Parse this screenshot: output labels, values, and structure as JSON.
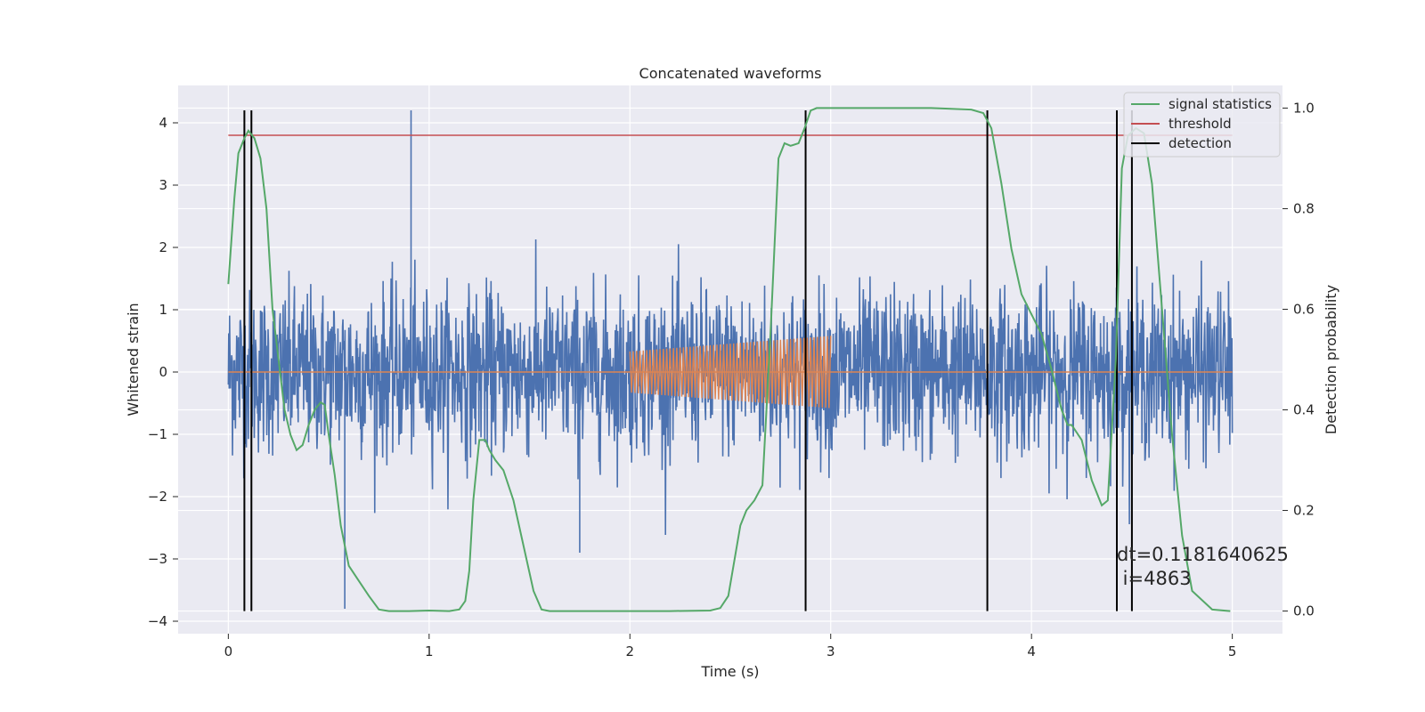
{
  "chart_data": {
    "type": "line",
    "title": "Concatenated waveforms",
    "xlabel": "Time (s)",
    "ylabel_left": "Whitened strain",
    "ylabel_right": "Detection probability",
    "xlim": [
      -0.25,
      5.25
    ],
    "ylim_left": [
      -4.2,
      4.6
    ],
    "ylim_right": [
      -0.045,
      1.045
    ],
    "x_ticks": [
      0,
      1,
      2,
      3,
      4,
      5
    ],
    "y_ticks_left": [
      -4,
      -3,
      -2,
      -1,
      0,
      1,
      2,
      3,
      4
    ],
    "y_ticks_left_labels": [
      "−4",
      "−3",
      "−2",
      "−1",
      "0",
      "1",
      "2",
      "3",
      "4"
    ],
    "y_ticks_right": [
      0.0,
      0.2,
      0.4,
      0.6,
      0.8,
      1.0
    ],
    "y_ticks_right_labels": [
      "0.0",
      "0.2",
      "0.4",
      "0.6",
      "0.8",
      "1.0"
    ],
    "grid": true,
    "legend_position": "top-right",
    "colors": {
      "noise": "#4c72b0",
      "injection": "#dd8452",
      "signal_statistics": "#55a868",
      "threshold": "#c44e52",
      "detection": "#000000",
      "plot_background": "#eaeaf2",
      "grid": "#ffffff"
    },
    "noise": {
      "x_range": [
        0,
        5
      ],
      "std": 0.65,
      "spikes": [
        [
          0.91,
          4.2
        ],
        [
          0.58,
          -3.8
        ],
        [
          1.75,
          -2.9
        ]
      ]
    },
    "injection": {
      "x_range": [
        2.0,
        3.0
      ],
      "amplitude_start": 0.33,
      "amplitude_end": 0.58,
      "cycles": 60
    },
    "series": [
      {
        "name": "signal statistics",
        "axis": "right",
        "x": [
          0.0,
          0.03,
          0.05,
          0.08,
          0.1,
          0.13,
          0.16,
          0.19,
          0.22,
          0.25,
          0.28,
          0.31,
          0.34,
          0.37,
          0.4,
          0.43,
          0.46,
          0.48,
          0.5,
          0.53,
          0.56,
          0.6,
          0.65,
          0.7,
          0.75,
          0.8,
          0.9,
          1.0,
          1.1,
          1.15,
          1.18,
          1.2,
          1.22,
          1.25,
          1.28,
          1.3,
          1.33,
          1.37,
          1.42,
          1.47,
          1.52,
          1.56,
          1.6,
          1.8,
          2.0,
          2.2,
          2.4,
          2.45,
          2.49,
          2.52,
          2.55,
          2.58,
          2.62,
          2.66,
          2.7,
          2.74,
          2.77,
          2.8,
          2.84,
          2.87,
          2.9,
          2.93,
          2.96,
          3.0,
          3.2,
          3.5,
          3.7,
          3.76,
          3.8,
          3.85,
          3.9,
          3.95,
          4.0,
          4.05,
          4.1,
          4.15,
          4.18,
          4.2,
          4.25,
          4.3,
          4.35,
          4.38,
          4.42,
          4.45,
          4.48,
          4.52,
          4.56,
          4.6,
          4.65,
          4.7,
          4.75,
          4.8,
          4.9,
          4.99
        ],
        "y": [
          0.65,
          0.82,
          0.91,
          0.94,
          0.955,
          0.94,
          0.9,
          0.8,
          0.6,
          0.5,
          0.4,
          0.35,
          0.32,
          0.33,
          0.37,
          0.4,
          0.415,
          0.41,
          0.35,
          0.27,
          0.17,
          0.09,
          0.06,
          0.03,
          0.003,
          0.0,
          0.0,
          0.001,
          0.0,
          0.003,
          0.02,
          0.08,
          0.22,
          0.34,
          0.34,
          0.32,
          0.3,
          0.28,
          0.22,
          0.13,
          0.04,
          0.003,
          0.0,
          0.0,
          0.0,
          0.0,
          0.001,
          0.006,
          0.03,
          0.1,
          0.17,
          0.2,
          0.22,
          0.25,
          0.55,
          0.9,
          0.93,
          0.925,
          0.93,
          0.96,
          0.995,
          1.0,
          1.0,
          1.0,
          1.0,
          1.0,
          0.997,
          0.99,
          0.96,
          0.85,
          0.72,
          0.63,
          0.59,
          0.55,
          0.48,
          0.4,
          0.37,
          0.37,
          0.34,
          0.26,
          0.21,
          0.22,
          0.5,
          0.88,
          0.945,
          0.96,
          0.95,
          0.85,
          0.6,
          0.35,
          0.15,
          0.04,
          0.003,
          0.0
        ]
      },
      {
        "name": "threshold",
        "axis": "left",
        "x": [
          0,
          5
        ],
        "y": [
          3.8,
          3.8
        ]
      },
      {
        "name": "detection",
        "axis": "left",
        "x": [
          0.08,
          0.115,
          2.875,
          3.78,
          4.425,
          4.5
        ]
      }
    ],
    "annotation": {
      "line1": "dt=0.1181640625",
      "line2": " i=4863"
    }
  }
}
